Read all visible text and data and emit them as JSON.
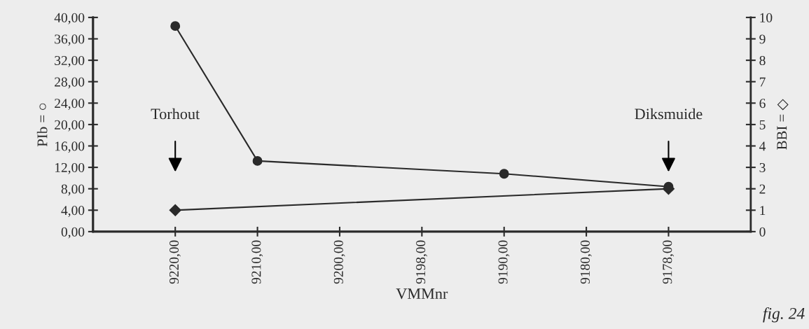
{
  "chart_data": {
    "type": "line",
    "xlabel": "VMMnr",
    "ylabel": "PIb = ○",
    "y2label": "BBI = ◇",
    "categories": [
      "9220,00",
      "9210,00",
      "9200,00",
      "9198,00",
      "9190,00",
      "9180,00",
      "9178,00"
    ],
    "series": [
      {
        "color": "#2a2a2a",
        "marker": "circle",
        "values": [
          38.4,
          13.2,
          null,
          null,
          10.8,
          null,
          8.4
        ]
      },
      {
        "color": "#2a2a2a",
        "marker": "diamond",
        "axis": "y2",
        "values": [
          1,
          null,
          null,
          null,
          null,
          null,
          2
        ]
      }
    ],
    "ylim": [
      0,
      40
    ],
    "yticks": [
      {
        "value": 0,
        "label": "0,00"
      },
      {
        "value": 4,
        "label": "4,00"
      },
      {
        "value": 8,
        "label": "8,00"
      },
      {
        "value": 12,
        "label": "12,00"
      },
      {
        "value": 16,
        "label": "16,00"
      },
      {
        "value": 20,
        "label": "20,00"
      },
      {
        "value": 24,
        "label": "24,00"
      },
      {
        "value": 28,
        "label": "28,00"
      },
      {
        "value": 32,
        "label": "32,00"
      },
      {
        "value": 36,
        "label": "36,00"
      },
      {
        "value": 40,
        "label": "40,00"
      }
    ],
    "y2lim": [
      0,
      10
    ],
    "y2ticks": [
      0,
      1,
      2,
      3,
      4,
      5,
      6,
      7,
      8,
      9,
      10
    ],
    "grid": false,
    "legend": false,
    "annotations": [
      "Torhout",
      "Diksmuide",
      "fig. 24"
    ]
  }
}
